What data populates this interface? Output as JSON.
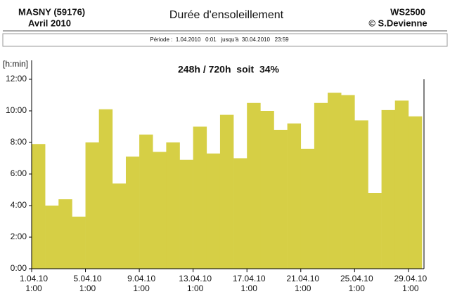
{
  "chart_data": {
    "type": "bar",
    "station": "MASNY (59176)",
    "month": "Avril 2010",
    "title": "Durée d'ensoleillement",
    "device": "WS2500",
    "author": "© S.Devienne",
    "period": "Période :  1.04.2010   0:01   jusqu'à  30.04.2010   23:59",
    "annotation": "248h / 720h  soit  34%",
    "ylabel": "[h:min]",
    "categories": [
      [
        "1.04.10",
        "1:00"
      ],
      null,
      null,
      null,
      [
        "5.04.10",
        "1:00"
      ],
      null,
      null,
      null,
      [
        "9.04.10",
        "1:00"
      ],
      null,
      null,
      null,
      [
        "13.04.10",
        "1:00"
      ],
      null,
      null,
      null,
      [
        "17.04.10",
        "1:00"
      ],
      null,
      null,
      null,
      [
        "21.04.10",
        "1:00"
      ],
      null,
      null,
      null,
      [
        "25.04.10",
        "1:00"
      ],
      null,
      null,
      null,
      [
        "29.04.10",
        "1:00"
      ]
    ],
    "values": [
      7.9,
      4.0,
      4.4,
      3.3,
      8.0,
      10.1,
      5.4,
      7.1,
      8.5,
      7.4,
      8.0,
      6.9,
      9.0,
      7.3,
      9.75,
      7.0,
      10.5,
      10.0,
      8.8,
      9.2,
      7.6,
      10.5,
      11.15,
      11.0,
      9.4,
      4.8,
      10.05,
      10.65,
      9.65
    ],
    "color": "#d6cf45",
    "ylim": [
      0,
      12
    ],
    "yticks": [
      {
        "value": 0,
        "label": "0:00"
      },
      {
        "value": 2,
        "label": "2:00"
      },
      {
        "value": 4,
        "label": "4:00"
      },
      {
        "value": 6,
        "label": "6:00"
      },
      {
        "value": 8,
        "label": "8:00"
      },
      {
        "value": 10,
        "label": "10:00"
      },
      {
        "value": 12,
        "label": "12:00"
      }
    ]
  }
}
